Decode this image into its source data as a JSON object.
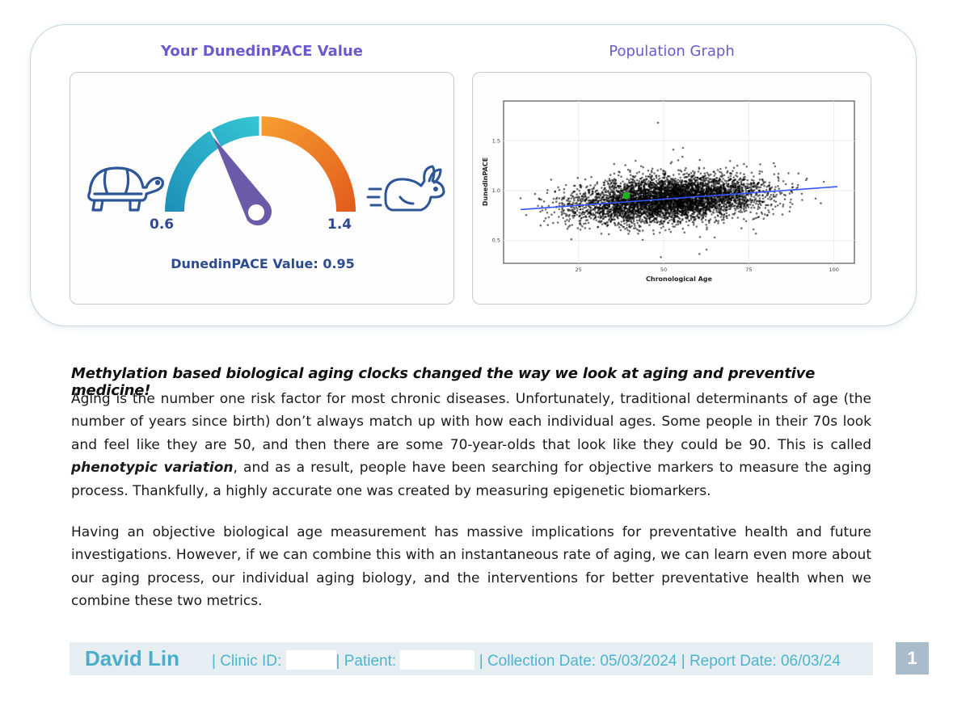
{
  "gauge_panel": {
    "title": "Your DunedinPACE Value",
    "min_label": "0.6",
    "max_label": "1.4",
    "value_label": "DunedinPACE Value:",
    "value": "0.95",
    "value_num": 0.95,
    "range": [
      0.6,
      1.4
    ],
    "slow_icon": "turtle-icon",
    "fast_icon": "rabbit-icon",
    "colors": {
      "teal": "#2fbfd1",
      "orange": "#f08a24",
      "needle": "#6a5aa8",
      "icon": "#2d5597"
    }
  },
  "population_panel": {
    "title": "Population Graph"
  },
  "chart_data": {
    "type": "scatter",
    "xlabel": "Chronological Age",
    "ylabel": "DunedinPACE",
    "xlim": [
      3,
      106
    ],
    "ylim": [
      0.27,
      1.9
    ],
    "x_ticks": [
      "25",
      "50",
      "75",
      "100"
    ],
    "y_ticks": [
      "0.5",
      "1.0",
      "1.5"
    ],
    "grid": true,
    "series": [
      {
        "points": "dense cloud of population samples",
        "color": "#000000"
      }
    ],
    "trend_line": {
      "x": [
        8,
        101
      ],
      "y": [
        0.81,
        1.04
      ],
      "color": "#3355ff"
    },
    "highlight_point": {
      "x": 39,
      "y": 0.95,
      "color": "#1db31d"
    }
  },
  "article": {
    "headline": "Methylation based biological aging clocks changed the way we look at aging and preventive medicine!",
    "para1_before": "Aging is the number one risk factor for most chronic diseases. Unfortunately, traditional determinants of age (the number of years since birth) don’t always match up with how each individual ages. Some people in their 70s look and feel like they are 50, and then there are some 70-year-olds that look like they could be 90. This is called ",
    "para1_em": "phenotypic variation",
    "para1_after": ", and as a result, people have been searching for objective markers to measure the aging process. Thankfully, a highly accurate one was created by measuring epigenetic biomarkers.",
    "para2": "Having an objective biological age measurement has massive implications for preventative health and future investigations.  However, if we can combine this with an instantaneous rate of aging, we can learn even more about our aging process, our individual aging biology, and the interventions for better preventative health when we combine these two metrics."
  },
  "footer": {
    "name": "David Lin",
    "clinic_label": "| Clinic ID:",
    "patient_label": "| Patient:",
    "collection": "| Collection Date: 05/03/2024",
    "report": "| Report Date: 06/03/24",
    "page_number": "1"
  }
}
